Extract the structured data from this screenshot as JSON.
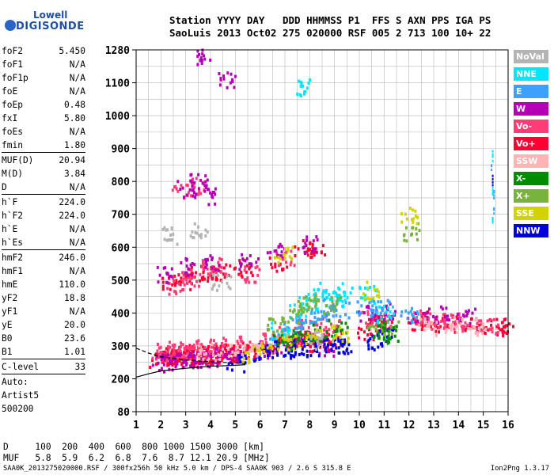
{
  "logo": {
    "line1": "Lowell",
    "line2": "DIGISONDE"
  },
  "header": {
    "line1": "Station YYYY DAY   DDD HHMMSS P1  FFS S AXN PPS IGA PS",
    "line2": "SaoLuis 2013 Oct02 275 020000 RSF 005 2 713 100 10+ 22"
  },
  "parameters": [
    {
      "name": "foF2",
      "value": "5.450"
    },
    {
      "name": "foF1",
      "value": "N/A"
    },
    {
      "name": "foF1p",
      "value": "N/A"
    },
    {
      "name": "foE",
      "value": "N/A"
    },
    {
      "name": "foEp",
      "value": "0.48"
    },
    {
      "name": "fxI",
      "value": "5.80"
    },
    {
      "name": "foEs",
      "value": "N/A"
    },
    {
      "name": "fmin",
      "value": "1.80"
    },
    {
      "name": "MUF(D)",
      "value": "20.94"
    },
    {
      "name": "M(D)",
      "value": "3.84"
    },
    {
      "name": "D",
      "value": "N/A"
    },
    {
      "name": "h`F",
      "value": "224.0"
    },
    {
      "name": "h`F2",
      "value": "224.0"
    },
    {
      "name": "h`E",
      "value": "N/A"
    },
    {
      "name": "h`Es",
      "value": "N/A"
    },
    {
      "name": "hmF2",
      "value": "246.0"
    },
    {
      "name": "hmF1",
      "value": "N/A"
    },
    {
      "name": "hmE",
      "value": "110.0"
    },
    {
      "name": "yF2",
      "value": "18.8"
    },
    {
      "name": "yF1",
      "value": "N/A"
    },
    {
      "name": "yE",
      "value": "20.0"
    },
    {
      "name": "B0",
      "value": "23.6"
    },
    {
      "name": "B1",
      "value": "1.01"
    },
    {
      "name": "C-level",
      "value": "33"
    }
  ],
  "auto": {
    "label": "Auto:",
    "artist": "Artist5",
    "version": "500200"
  },
  "footer": {
    "d_row": "D     100  200  400  600  800 1000 1500 3000 [km]",
    "muf_row": "MUF   5.8  5.9  6.2  6.8  7.6  8.7 12.1 20.9 [MHz]",
    "info": "SAA0K_2013275020000.RSF / 300fx256h 50 kHz 5.0 km / DPS-4 SAA0K 903 / 2.6 S 315.8 E",
    "version": "Ion2Png 1.3.17"
  },
  "legend": [
    {
      "label": "NoVal",
      "color": "#b4b4b4"
    },
    {
      "label": "NNE",
      "color": "#00e6ff"
    },
    {
      "label": "E",
      "color": "#3ca0ff"
    },
    {
      "label": "W",
      "color": "#b400b4"
    },
    {
      "label": "Vo-",
      "color": "#ff3c78"
    },
    {
      "label": "Vo+",
      "color": "#ff0032"
    },
    {
      "label": "SSW",
      "color": "#ffb4b4"
    },
    {
      "label": "X-",
      "color": "#008c00"
    },
    {
      "label": "X+",
      "color": "#78b43c"
    },
    {
      "label": "SSE",
      "color": "#d2d200"
    },
    {
      "label": "NNW",
      "color": "#0000dc"
    }
  ],
  "chart_data": {
    "type": "scatter",
    "x_ticks": [
      "1",
      "2",
      "3",
      "4",
      "5",
      "6",
      "7",
      "8",
      "9",
      "10",
      "11",
      "12",
      "13",
      "14",
      "15",
      "16"
    ],
    "y_ticks": [
      "80",
      "200",
      "300",
      "400",
      "500",
      "600",
      "700",
      "800",
      "900",
      "1000",
      "1100",
      "1280"
    ],
    "xlim": [
      1,
      16
    ],
    "ylim": [
      80,
      1280
    ],
    "grid": true,
    "series": [
      {
        "name": "Vo+",
        "color": "#ff0032",
        "points": [
          [
            1.9,
            262
          ],
          [
            2.1,
            268
          ],
          [
            2.3,
            272
          ],
          [
            2.5,
            270
          ],
          [
            2.7,
            275
          ],
          [
            2.9,
            271
          ],
          [
            3.1,
            268
          ],
          [
            3.3,
            276
          ],
          [
            3.5,
            280
          ],
          [
            3.7,
            274
          ],
          [
            3.9,
            270
          ],
          [
            4.1,
            278
          ],
          [
            4.3,
            282
          ],
          [
            4.6,
            276
          ],
          [
            4.9,
            284
          ],
          [
            5.2,
            280
          ],
          [
            5.5,
            288
          ],
          [
            6.2,
            300
          ],
          [
            6.8,
            310
          ],
          [
            7.4,
            322
          ],
          [
            7.9,
            312
          ],
          [
            8.4,
            318
          ],
          [
            8.9,
            320
          ],
          [
            10.2,
            350
          ],
          [
            10.6,
            368
          ],
          [
            11.0,
            372
          ],
          [
            12.3,
            378
          ],
          [
            12.8,
            382
          ],
          [
            13.4,
            372
          ],
          [
            14.1,
            368
          ],
          [
            14.8,
            362
          ],
          [
            15.6,
            360
          ],
          [
            2.4,
            495
          ],
          [
            2.9,
            500
          ],
          [
            3.4,
            520
          ],
          [
            3.9,
            525
          ],
          [
            4.4,
            530
          ],
          [
            5.3,
            540
          ],
          [
            6.7,
            555
          ],
          [
            7.7,
            600
          ],
          [
            8.2,
            590
          ],
          [
            15.8,
            360
          ]
        ]
      },
      {
        "name": "Vo-",
        "color": "#ff3c78",
        "points": [
          [
            1.95,
            285
          ],
          [
            2.2,
            290
          ],
          [
            2.6,
            292
          ],
          [
            3.0,
            288
          ],
          [
            3.4,
            294
          ],
          [
            3.8,
            296
          ],
          [
            4.2,
            300
          ],
          [
            4.8,
            302
          ],
          [
            5.4,
            306
          ],
          [
            6.4,
            320
          ],
          [
            7.1,
            340
          ],
          [
            7.8,
            360
          ],
          [
            8.3,
            350
          ],
          [
            8.8,
            372
          ],
          [
            10.4,
            392
          ],
          [
            10.9,
            380
          ],
          [
            12.5,
            390
          ],
          [
            13.1,
            380
          ],
          [
            13.7,
            376
          ],
          [
            14.5,
            370
          ],
          [
            15.2,
            362
          ],
          [
            2.6,
            485
          ],
          [
            3.2,
            510
          ],
          [
            3.7,
            540
          ],
          [
            4.2,
            545
          ],
          [
            5.6,
            520
          ],
          [
            7.0,
            570
          ],
          [
            3.4,
            790
          ],
          [
            2.8,
            770
          ]
        ]
      },
      {
        "name": "W",
        "color": "#b400b4",
        "points": [
          [
            2.0,
            250
          ],
          [
            2.4,
            255
          ],
          [
            2.8,
            258
          ],
          [
            3.2,
            262
          ],
          [
            3.6,
            266
          ],
          [
            4.0,
            264
          ],
          [
            4.5,
            268
          ],
          [
            5.0,
            270
          ],
          [
            6.3,
            292
          ],
          [
            7.0,
            300
          ],
          [
            7.6,
            330
          ],
          [
            8.6,
            300
          ],
          [
            10.3,
            405
          ],
          [
            11.1,
            410
          ],
          [
            12.4,
            396
          ],
          [
            13.2,
            398
          ],
          [
            14.3,
            390
          ],
          [
            2.2,
            520
          ],
          [
            3.1,
            545
          ],
          [
            4.1,
            555
          ],
          [
            5.5,
            560
          ],
          [
            6.6,
            590
          ],
          [
            7.9,
            610
          ],
          [
            3.0,
            780
          ],
          [
            3.5,
            800
          ],
          [
            3.8,
            760
          ],
          [
            4.6,
            1115
          ],
          [
            3.6,
            1250
          ]
        ]
      },
      {
        "name": "NNW",
        "color": "#0000dc",
        "points": [
          [
            5.0,
            252
          ],
          [
            6.0,
            285
          ],
          [
            6.5,
            295
          ],
          [
            7.0,
            292
          ],
          [
            7.5,
            296
          ],
          [
            8.0,
            300
          ],
          [
            8.5,
            302
          ],
          [
            9.0,
            305
          ],
          [
            9.3,
            300
          ],
          [
            10.5,
            318
          ],
          [
            11.1,
            330
          ],
          [
            15.35,
            805
          ]
        ]
      },
      {
        "name": "E",
        "color": "#3ca0ff",
        "points": [
          [
            6.6,
            332
          ],
          [
            7.3,
            360
          ],
          [
            7.8,
            380
          ],
          [
            8.4,
            395
          ],
          [
            8.8,
            420
          ],
          [
            9.2,
            410
          ],
          [
            10.2,
            420
          ],
          [
            10.8,
            430
          ],
          [
            12.0,
            392
          ],
          [
            15.4,
            720
          ],
          [
            15.4,
            760
          ],
          [
            15.3,
            850
          ]
        ]
      },
      {
        "name": "NNE",
        "color": "#00e6ff",
        "points": [
          [
            6.8,
            350
          ],
          [
            7.5,
            410
          ],
          [
            7.9,
            440
          ],
          [
            8.5,
            470
          ],
          [
            9.0,
            450
          ],
          [
            9.3,
            470
          ],
          [
            10.3,
            460
          ],
          [
            11.0,
            400
          ],
          [
            15.35,
            690
          ],
          [
            15.35,
            780
          ],
          [
            15.35,
            880
          ],
          [
            7.7,
            1090
          ]
        ]
      },
      {
        "name": "X+",
        "color": "#78b43c",
        "points": [
          [
            6.6,
            370
          ],
          [
            7.2,
            400
          ],
          [
            7.8,
            420
          ],
          [
            8.1,
            440
          ],
          [
            8.9,
            430
          ],
          [
            10.6,
            345
          ],
          [
            11.2,
            360
          ],
          [
            12.0,
            650
          ]
        ]
      },
      {
        "name": "X-",
        "color": "#008c00",
        "points": [
          [
            6.9,
            310
          ],
          [
            7.6,
            330
          ],
          [
            8.3,
            345
          ],
          [
            9.1,
            360
          ],
          [
            10.7,
            355
          ],
          [
            11.3,
            338
          ]
        ]
      },
      {
        "name": "SSE",
        "color": "#d2d200",
        "points": [
          [
            5.6,
            276
          ],
          [
            6.3,
            305
          ],
          [
            7.2,
            310
          ],
          [
            8.2,
            330
          ],
          [
            9.2,
            342
          ],
          [
            10.5,
            472
          ],
          [
            12.0,
            700
          ],
          [
            6.9,
            580
          ]
        ]
      },
      {
        "name": "SSW",
        "color": "#ffb4b4",
        "points": [
          [
            3.8,
            285
          ],
          [
            4.7,
            290
          ],
          [
            5.6,
            298
          ],
          [
            12.7,
            362
          ],
          [
            13.8,
            368
          ],
          [
            14.7,
            362
          ]
        ]
      },
      {
        "name": "NoVal",
        "color": "#b4b4b4",
        "points": [
          [
            2.3,
            640
          ],
          [
            3.5,
            660
          ],
          [
            8.2,
            320
          ],
          [
            4.4,
            500
          ]
        ]
      }
    ],
    "curves": [
      {
        "name": "lower",
        "style": "solid",
        "points": [
          [
            1,
            205
          ],
          [
            1.5,
            215
          ],
          [
            2,
            224
          ],
          [
            3,
            232
          ],
          [
            4,
            238
          ],
          [
            5,
            241
          ],
          [
            5.4,
            243
          ]
        ]
      },
      {
        "name": "upper",
        "style": "dashed",
        "points": [
          [
            1,
            293
          ],
          [
            1.5,
            278
          ],
          [
            2,
            267
          ],
          [
            3,
            257
          ],
          [
            4,
            252
          ],
          [
            5,
            248
          ],
          [
            5.4,
            246
          ]
        ]
      }
    ]
  }
}
